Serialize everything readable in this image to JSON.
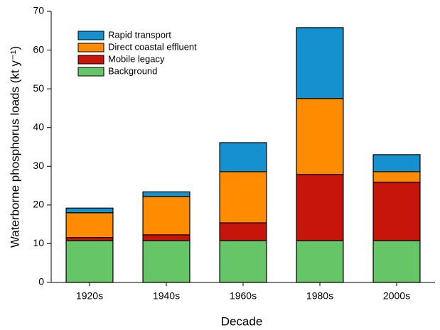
{
  "chart_data": {
    "type": "stacked_bar",
    "xlabel": "Decade",
    "ylabel": "Waterborne phosphorus loads (kt y⁻¹)",
    "categories": [
      "1920s",
      "1940s",
      "1960s",
      "1980s",
      "2000s"
    ],
    "series": [
      {
        "name": "Background",
        "color": "#66c566",
        "values": [
          10.8,
          10.8,
          10.8,
          10.8,
          10.8
        ]
      },
      {
        "name": "Mobile legacy",
        "color": "#c8150c",
        "values": [
          0.8,
          1.5,
          4.6,
          17.1,
          15.1
        ]
      },
      {
        "name": "Direct coastal effluent",
        "color": "#ff8c00",
        "values": [
          6.4,
          9.9,
          13.2,
          19.6,
          2.7
        ]
      },
      {
        "name": "Rapid transport",
        "color": "#1591d0",
        "values": [
          1.2,
          1.2,
          7.5,
          18.3,
          4.4
        ]
      }
    ],
    "ylim": [
      0,
      70
    ],
    "yticks": [
      0,
      10,
      20,
      30,
      40,
      50,
      60,
      70
    ],
    "legend": "upper-left"
  }
}
